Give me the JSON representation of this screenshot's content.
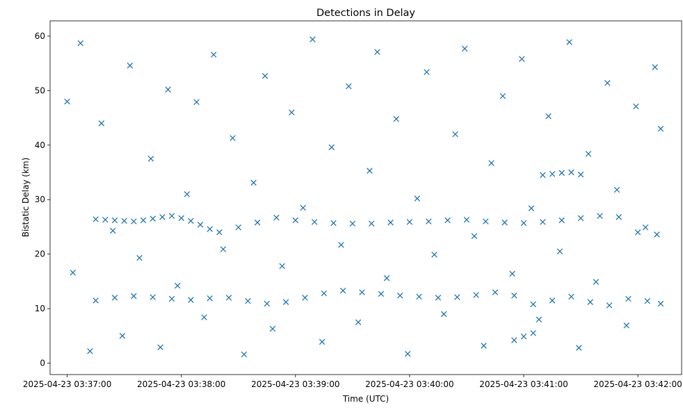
{
  "chart_data": {
    "type": "scatter",
    "title": "Detections in Delay",
    "xlabel": "Time (UTC)",
    "ylabel": "Bistatic Delay (km)",
    "x_ticks": [
      "2025-04-23 03:37:00",
      "2025-04-23 03:38:00",
      "2025-04-23 03:39:00",
      "2025-04-23 03:40:00",
      "2025-04-23 03:41:00",
      "2025-04-23 03:42:00"
    ],
    "y_ticks": [
      "0",
      "10",
      "20",
      "30",
      "40",
      "50",
      "60"
    ],
    "xlim": [
      "2025-04-23 03:36:51",
      "2025-04-23 03:42:23"
    ],
    "ylim": [
      -2.1,
      62.8
    ],
    "marker": "x",
    "color": "#1f77b4",
    "grid": false,
    "series": [
      {
        "x": [
          "2025-04-23 03:37:15",
          "2025-04-23 03:37:20",
          "2025-04-23 03:37:25",
          "2025-04-23 03:37:30",
          "2025-04-23 03:37:35",
          "2025-04-23 03:37:40",
          "2025-04-23 03:37:45",
          "2025-04-23 03:37:50",
          "2025-04-23 03:37:55",
          "2025-04-23 03:38:00",
          "2025-04-23 03:38:05",
          "2025-04-23 03:38:10",
          "2025-04-23 03:38:15",
          "2025-04-23 03:38:20",
          "2025-04-23 03:38:30",
          "2025-04-23 03:38:40",
          "2025-04-23 03:38:50",
          "2025-04-23 03:39:00",
          "2025-04-23 03:39:10",
          "2025-04-23 03:39:20",
          "2025-04-23 03:39:30",
          "2025-04-23 03:39:40",
          "2025-04-23 03:39:50",
          "2025-04-23 03:40:00",
          "2025-04-23 03:40:10",
          "2025-04-23 03:40:20",
          "2025-04-23 03:40:30",
          "2025-04-23 03:40:40",
          "2025-04-23 03:40:50",
          "2025-04-23 03:41:00",
          "2025-04-23 03:41:10",
          "2025-04-23 03:41:20",
          "2025-04-23 03:41:30",
          "2025-04-23 03:41:40",
          "2025-04-23 03:41:50",
          "2025-04-23 03:42:00",
          "2025-04-23 03:42:10"
        ],
        "y": [
          26.4,
          26.3,
          26.2,
          26.1,
          26.0,
          26.2,
          26.5,
          26.8,
          27.0,
          26.6,
          26.1,
          25.4,
          24.6,
          24.0,
          24.9,
          25.8,
          26.7,
          26.2,
          25.9,
          25.7,
          25.6,
          25.6,
          25.8,
          25.9,
          26.0,
          26.2,
          26.3,
          26.0,
          25.8,
          25.7,
          25.9,
          26.2,
          26.6,
          27.0,
          26.8,
          24.0,
          23.6
        ]
      },
      {
        "x": [
          "2025-04-23 03:37:15",
          "2025-04-23 03:37:25",
          "2025-04-23 03:37:35",
          "2025-04-23 03:37:45",
          "2025-04-23 03:37:55",
          "2025-04-23 03:38:05",
          "2025-04-23 03:38:15",
          "2025-04-23 03:38:25",
          "2025-04-23 03:38:35",
          "2025-04-23 03:38:45",
          "2025-04-23 03:38:55",
          "2025-04-23 03:39:05",
          "2025-04-23 03:39:15",
          "2025-04-23 03:39:25",
          "2025-04-23 03:39:35",
          "2025-04-23 03:39:45",
          "2025-04-23 03:39:55",
          "2025-04-23 03:40:05",
          "2025-04-23 03:40:15",
          "2025-04-23 03:40:25",
          "2025-04-23 03:40:35",
          "2025-04-23 03:40:45",
          "2025-04-23 03:40:55",
          "2025-04-23 03:41:05",
          "2025-04-23 03:41:15",
          "2025-04-23 03:41:25",
          "2025-04-23 03:41:35",
          "2025-04-23 03:41:45",
          "2025-04-23 03:41:55",
          "2025-04-23 03:42:05",
          "2025-04-23 03:42:12"
        ],
        "y": [
          11.5,
          12.0,
          12.3,
          12.1,
          11.8,
          11.6,
          11.9,
          12.0,
          11.4,
          10.9,
          11.2,
          12.0,
          12.8,
          13.3,
          13.0,
          12.7,
          12.4,
          12.2,
          12.0,
          12.1,
          12.5,
          13.0,
          12.4,
          10.8,
          11.5,
          12.2,
          11.2,
          10.6,
          11.8,
          11.4,
          10.9
        ]
      },
      {
        "x": [
          "2025-04-23 03:41:10",
          "2025-04-23 03:41:15",
          "2025-04-23 03:41:20",
          "2025-04-23 03:41:25",
          "2025-04-23 03:41:30",
          "2025-04-23 03:40:55",
          "2025-04-23 03:41:00",
          "2025-04-23 03:41:05"
        ],
        "y": [
          34.5,
          34.7,
          34.9,
          35.0,
          34.6,
          4.2,
          4.9,
          5.5
        ]
      },
      {
        "x": [
          "2025-04-23 03:37:00",
          "2025-04-23 03:37:03",
          "2025-04-23 03:37:07",
          "2025-04-23 03:37:12",
          "2025-04-23 03:37:18",
          "2025-04-23 03:37:24",
          "2025-04-23 03:37:29",
          "2025-04-23 03:37:33",
          "2025-04-23 03:37:38",
          "2025-04-23 03:37:44",
          "2025-04-23 03:37:49",
          "2025-04-23 03:37:53",
          "2025-04-23 03:37:58",
          "2025-04-23 03:38:03",
          "2025-04-23 03:38:08",
          "2025-04-23 03:38:12",
          "2025-04-23 03:38:17",
          "2025-04-23 03:38:22",
          "2025-04-23 03:38:27",
          "2025-04-23 03:38:33",
          "2025-04-23 03:38:38",
          "2025-04-23 03:38:44",
          "2025-04-23 03:38:48",
          "2025-04-23 03:38:53",
          "2025-04-23 03:38:58",
          "2025-04-23 03:39:04",
          "2025-04-23 03:39:09",
          "2025-04-23 03:39:14",
          "2025-04-23 03:39:19",
          "2025-04-23 03:39:24",
          "2025-04-23 03:39:28",
          "2025-04-23 03:39:33",
          "2025-04-23 03:39:39",
          "2025-04-23 03:39:43",
          "2025-04-23 03:39:48",
          "2025-04-23 03:39:53",
          "2025-04-23 03:39:59",
          "2025-04-23 03:40:04",
          "2025-04-23 03:40:09",
          "2025-04-23 03:40:13",
          "2025-04-23 03:40:18",
          "2025-04-23 03:40:24",
          "2025-04-23 03:40:29",
          "2025-04-23 03:40:34",
          "2025-04-23 03:40:39",
          "2025-04-23 03:40:43",
          "2025-04-23 03:40:49",
          "2025-04-23 03:40:54",
          "2025-04-23 03:40:59",
          "2025-04-23 03:41:04",
          "2025-04-23 03:41:08",
          "2025-04-23 03:41:13",
          "2025-04-23 03:41:19",
          "2025-04-23 03:41:24",
          "2025-04-23 03:41:29",
          "2025-04-23 03:41:34",
          "2025-04-23 03:41:38",
          "2025-04-23 03:41:44",
          "2025-04-23 03:41:49",
          "2025-04-23 03:41:54",
          "2025-04-23 03:41:59",
          "2025-04-23 03:42:04",
          "2025-04-23 03:42:09",
          "2025-04-23 03:42:12"
        ],
        "y": [
          48.0,
          16.6,
          58.7,
          2.2,
          44.0,
          24.3,
          5.0,
          54.6,
          19.3,
          37.5,
          2.9,
          50.2,
          14.2,
          31.0,
          47.9,
          8.4,
          56.6,
          20.9,
          41.3,
          1.6,
          33.1,
          52.7,
          6.3,
          17.8,
          46.0,
          28.5,
          59.4,
          3.9,
          39.6,
          21.7,
          50.8,
          7.5,
          35.3,
          57.1,
          15.6,
          44.8,
          1.7,
          30.2,
          53.4,
          19.9,
          9.0,
          42.0,
          57.7,
          23.3,
          3.2,
          36.7,
          49.0,
          16.4,
          55.8,
          28.4,
          8.0,
          45.3,
          20.5,
          58.9,
          2.8,
          38.4,
          14.9,
          51.4,
          31.8,
          6.9,
          47.1,
          24.9,
          54.3,
          43.0
        ]
      }
    ]
  }
}
